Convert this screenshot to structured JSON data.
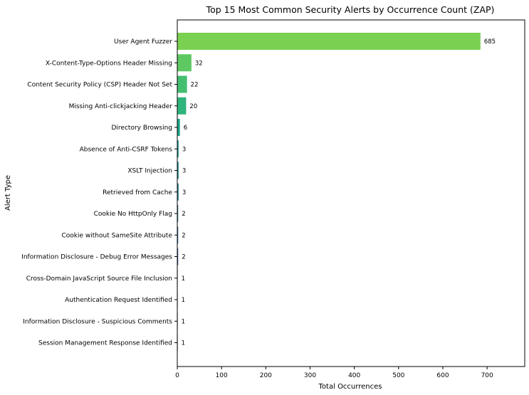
{
  "chart_data": {
    "type": "bar",
    "orientation": "horizontal",
    "title": "Top 15 Most Common Security Alerts by Occurrence Count (ZAP)",
    "xlabel": "Total Occurrences",
    "ylabel": "Alert Type",
    "xlim": [
      0,
      785
    ],
    "xticks": [
      0,
      100,
      200,
      300,
      400,
      500,
      600,
      700
    ],
    "grid": false,
    "legend": "none",
    "categories": [
      "User Agent Fuzzer",
      "X-Content-Type-Options Header Missing",
      "Content Security Policy (CSP) Header Not Set",
      "Missing Anti-clickjacking Header",
      "Directory Browsing",
      "Absence of Anti-CSRF Tokens",
      "XSLT Injection",
      "Retrieved from Cache",
      "Cookie No HttpOnly Flag",
      "Cookie without SameSite Attribute",
      "Information Disclosure - Debug Error Messages",
      "Cross-Domain JavaScript Source File Inclusion",
      "Authentication Request Identified",
      "Information Disclosure - Suspicious Comments",
      "Session Management Response Identified"
    ],
    "values": [
      685,
      32,
      22,
      20,
      6,
      3,
      3,
      3,
      2,
      2,
      2,
      1,
      1,
      1,
      1
    ],
    "colors": [
      "#7ad151",
      "#5ec962",
      "#44bf70",
      "#2fb47c",
      "#21a685",
      "#1f988b",
      "#228c8d",
      "#277f8e",
      "#2c728e",
      "#33638d",
      "#3b528b",
      "#424086",
      "#472d7b",
      "#48186a",
      "#440154"
    ]
  }
}
